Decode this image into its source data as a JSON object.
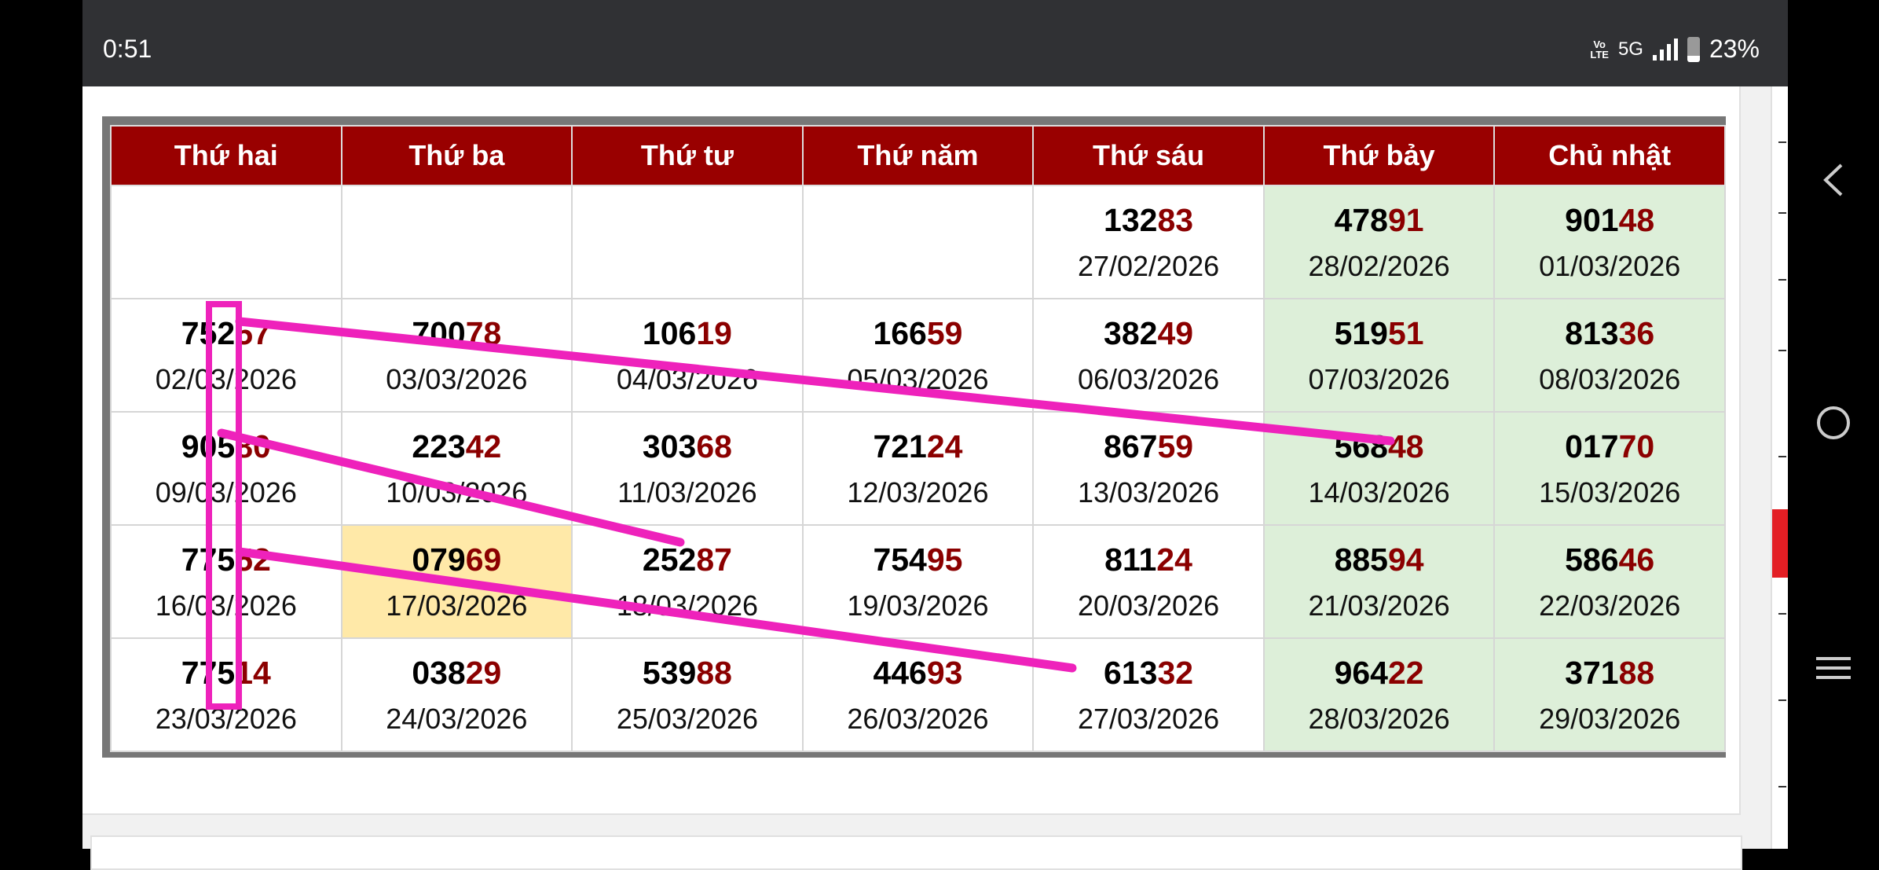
{
  "status_bar": {
    "time": "0:51",
    "volte": "Vo LTE",
    "network": "5G",
    "battery": "23%",
    "battery_level": 0.23
  },
  "calendar": {
    "headers": [
      "Thứ hai",
      "Thứ ba",
      "Thứ tư",
      "Thứ năm",
      "Thứ sáu",
      "Thứ bảy",
      "Chủ nhật"
    ],
    "weekend_color": "#ddefd9",
    "highlight_color": "#ffe9a8",
    "header_color": "#990000",
    "rows": [
      [
        null,
        null,
        null,
        null,
        {
          "number": "13283",
          "date": "27/02/2026"
        },
        {
          "number": "47891",
          "date": "28/02/2026"
        },
        {
          "number": "90148",
          "date": "01/03/2026"
        }
      ],
      [
        {
          "number": "75257",
          "date": "02/03/2026"
        },
        {
          "number": "70078",
          "date": "03/03/2026"
        },
        {
          "number": "10619",
          "date": "04/03/2026"
        },
        {
          "number": "16659",
          "date": "05/03/2026"
        },
        {
          "number": "38249",
          "date": "06/03/2026"
        },
        {
          "number": "51951",
          "date": "07/03/2026"
        },
        {
          "number": "81336",
          "date": "08/03/2026"
        }
      ],
      [
        {
          "number": "90580",
          "date": "09/03/2026"
        },
        {
          "number": "22342",
          "date": "10/03/2026"
        },
        {
          "number": "30368",
          "date": "11/03/2026"
        },
        {
          "number": "72124",
          "date": "12/03/2026"
        },
        {
          "number": "86759",
          "date": "13/03/2026"
        },
        {
          "number": "56848",
          "date": "14/03/2026"
        },
        {
          "number": "01770",
          "date": "15/03/2026"
        }
      ],
      [
        {
          "number": "77552",
          "date": "16/03/2026"
        },
        {
          "number": "07969",
          "date": "17/03/2026",
          "highlight": true
        },
        {
          "number": "25287",
          "date": "18/03/2026"
        },
        {
          "number": "75495",
          "date": "19/03/2026"
        },
        {
          "number": "81124",
          "date": "20/03/2026"
        },
        {
          "number": "88594",
          "date": "21/03/2026"
        },
        {
          "number": "58646",
          "date": "22/03/2026"
        }
      ],
      [
        {
          "number": "77514",
          "date": "23/03/2026"
        },
        {
          "number": "03829",
          "date": "24/03/2026"
        },
        {
          "number": "53988",
          "date": "25/03/2026"
        },
        {
          "number": "44693",
          "date": "26/03/2026"
        },
        {
          "number": "61332",
          "date": "27/03/2026"
        },
        {
          "number": "96422",
          "date": "28/03/2026"
        },
        {
          "number": "37188",
          "date": "29/03/2026"
        }
      ]
    ]
  },
  "annotation_color": "#ee22bb",
  "nav": {
    "icons": [
      "back-icon",
      "home-icon",
      "recents-icon"
    ]
  }
}
